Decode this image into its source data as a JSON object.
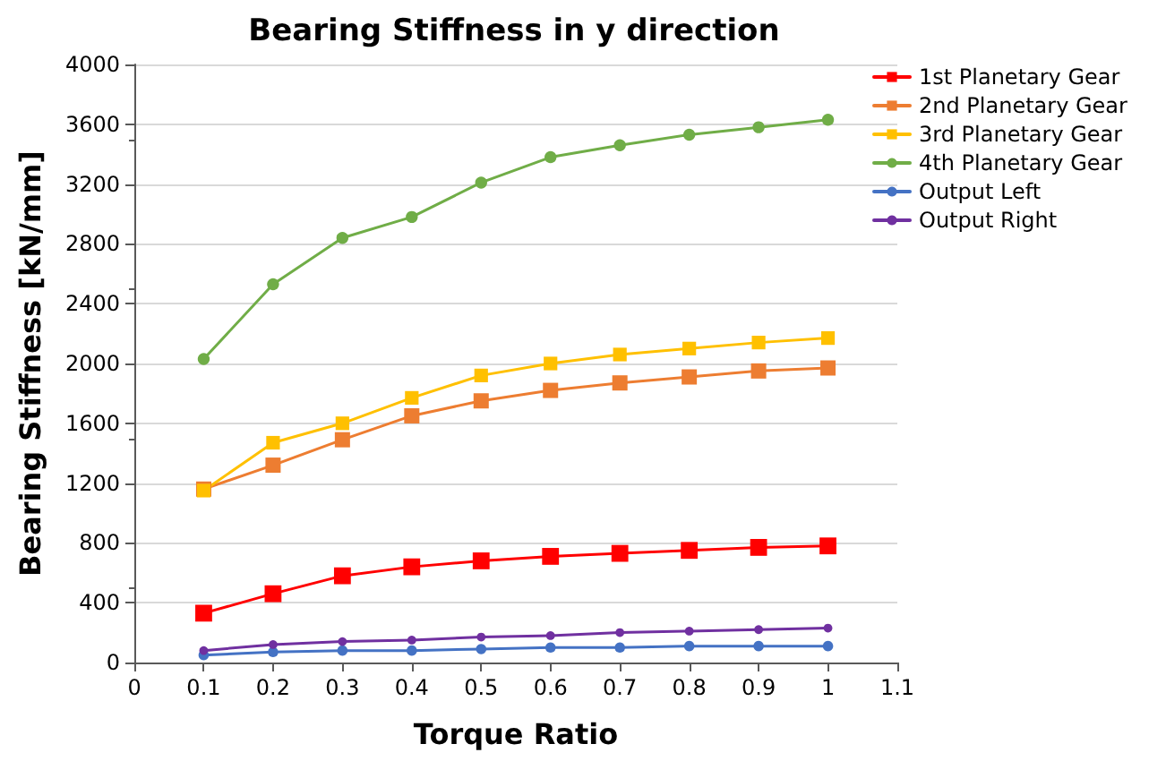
{
  "chart_data": {
    "type": "line",
    "title": "Bearing Stiffness in y direction",
    "xlabel": "Torque Ratio",
    "ylabel": "Bearing Stiffness [kN/mm]",
    "x": [
      0.1,
      0.2,
      0.3,
      0.4,
      0.5,
      0.6,
      0.7,
      0.8,
      0.9,
      1
    ],
    "series": [
      {
        "name": "1st Planetary Gear",
        "color": "#ff0000",
        "marker": "square",
        "values": [
          330,
          460,
          580,
          640,
          680,
          710,
          730,
          750,
          770,
          780
        ]
      },
      {
        "name": "2nd Planetary Gear",
        "color": "#ed7d31",
        "marker": "square",
        "values": [
          1160,
          1320,
          1490,
          1650,
          1750,
          1820,
          1870,
          1910,
          1950,
          1970
        ]
      },
      {
        "name": "3rd Planetary Gear",
        "color": "#ffc000",
        "marker": "square",
        "values": [
          1150,
          1470,
          1600,
          1770,
          1920,
          2000,
          2060,
          2100,
          2140,
          2170
        ]
      },
      {
        "name": "4th Planetary Gear",
        "color": "#70ad47",
        "marker": "circle",
        "values": [
          2030,
          2530,
          2840,
          2980,
          3210,
          3380,
          3460,
          3530,
          3580,
          3630
        ]
      },
      {
        "name": "Output Left",
        "color": "#4472c4",
        "marker": "circle",
        "values": [
          50,
          70,
          80,
          80,
          90,
          100,
          100,
          110,
          110,
          110
        ]
      },
      {
        "name": "Output Right",
        "color": "#7030a0",
        "marker": "circle",
        "values": [
          80,
          120,
          140,
          150,
          170,
          180,
          200,
          210,
          220,
          230
        ]
      }
    ],
    "xlim": [
      0,
      1.1
    ],
    "xticks": [
      0,
      0.1,
      0.2,
      0.3,
      0.4,
      0.5,
      0.6,
      0.7,
      0.8,
      0.9,
      1,
      1.1
    ],
    "ylim": [
      0,
      4000
    ],
    "yticks": [
      0,
      400,
      800,
      1200,
      1600,
      2000,
      2400,
      2800,
      3200,
      3600,
      4000
    ],
    "grid": "y",
    "legend": "top right",
    "line_style": "solid"
  }
}
